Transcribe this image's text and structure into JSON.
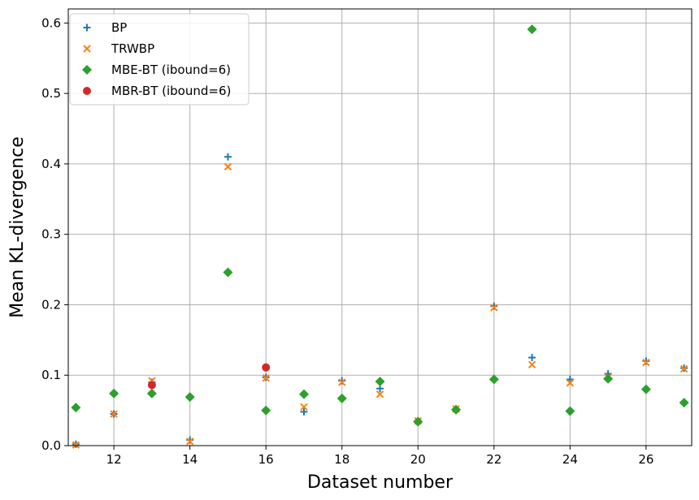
{
  "chart_data": {
    "type": "scatter",
    "xlabel": "Dataset number",
    "ylabel": "Mean KL-divergence",
    "xlim": [
      10.8,
      27.2
    ],
    "ylim": [
      0,
      0.62
    ],
    "xticks": [
      12,
      14,
      16,
      18,
      20,
      22,
      24,
      26
    ],
    "yticks": [
      0.0,
      0.1,
      0.2,
      0.3,
      0.4,
      0.5,
      0.6
    ],
    "grid": true,
    "legend_position": "upper-left",
    "series": [
      {
        "name": "BP",
        "marker": "plus",
        "color": "#1f77b4",
        "x": [
          11,
          12,
          13,
          14,
          15,
          16,
          17,
          18,
          19,
          20,
          21,
          22,
          23,
          24,
          25,
          26,
          27
        ],
        "y": [
          0.002,
          0.045,
          0.09,
          0.008,
          0.41,
          0.097,
          0.048,
          0.092,
          0.081,
          0.035,
          0.052,
          0.198,
          0.125,
          0.094,
          0.102,
          0.12,
          0.11
        ]
      },
      {
        "name": "TRWBP",
        "marker": "x",
        "color": "#ff7f0e",
        "x": [
          11,
          12,
          13,
          14,
          15,
          16,
          17,
          18,
          19,
          20,
          21,
          22,
          23,
          24,
          25,
          26,
          27
        ],
        "y": [
          0.001,
          0.045,
          0.092,
          0.006,
          0.396,
          0.096,
          0.055,
          0.09,
          0.073,
          0.035,
          0.052,
          0.196,
          0.115,
          0.089,
          0.097,
          0.118,
          0.109
        ]
      },
      {
        "name": "MBE-BT (ibound=6)",
        "marker": "diamond",
        "color": "#2ca02c",
        "x": [
          11,
          12,
          13,
          14,
          15,
          16,
          17,
          18,
          19,
          20,
          21,
          22,
          23,
          24,
          25,
          26,
          27
        ],
        "y": [
          0.054,
          0.074,
          0.074,
          0.069,
          0.246,
          0.05,
          0.073,
          0.067,
          0.091,
          0.034,
          0.051,
          0.094,
          0.591,
          0.049,
          0.095,
          0.08,
          0.061
        ]
      },
      {
        "name": "MBR-BT (ibound=6)",
        "marker": "circle",
        "color": "#d62728",
        "x": [
          13,
          16
        ],
        "y": [
          0.086,
          0.111
        ]
      }
    ]
  }
}
